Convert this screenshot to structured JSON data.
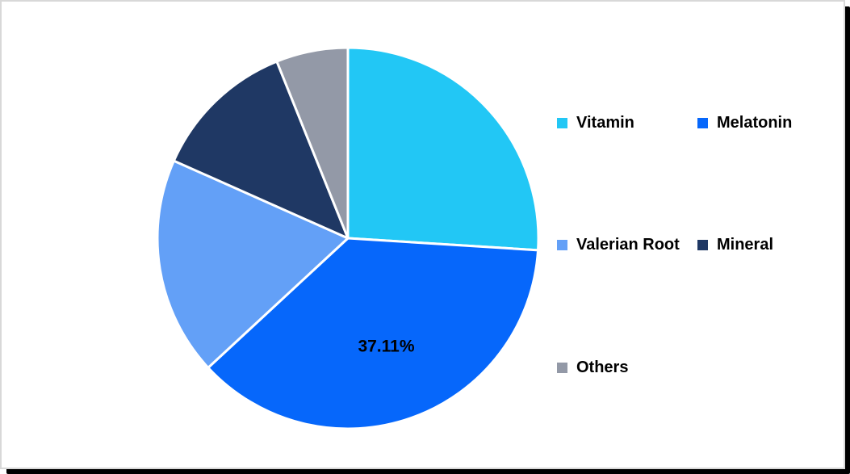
{
  "chart_data": {
    "type": "pie",
    "title": "",
    "legend_position": "right",
    "direction": "clockwise",
    "start_angle_deg": 0,
    "separator_color": "#ffffff",
    "data_label_color": "#000000",
    "slices": [
      {
        "name": "Vitamin",
        "value": 26.0,
        "color": "#22c7f5"
      },
      {
        "name": "Melatonin",
        "value": 37.11,
        "color": "#0667fb",
        "data_label": "37.11%"
      },
      {
        "name": "Valerian Root",
        "value": 18.55,
        "color": "#63a0f7"
      },
      {
        "name": "Mineral",
        "value": 12.25,
        "color": "#1f3864"
      },
      {
        "name": "Others",
        "value": 6.09,
        "color": "#9399a7"
      }
    ]
  }
}
